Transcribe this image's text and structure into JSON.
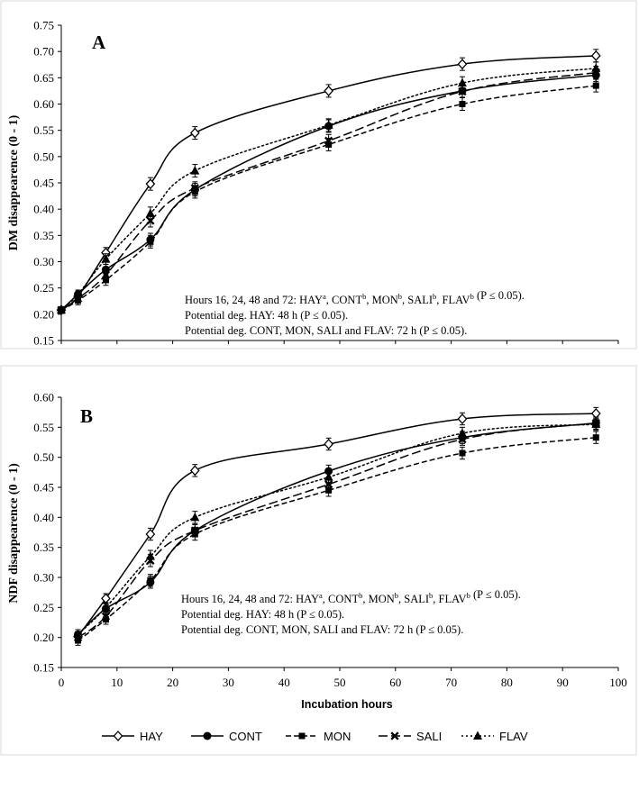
{
  "chart_data": [
    {
      "type": "line",
      "panel_label": "A",
      "ylabel": "DM disappearence  (0 - 1)",
      "xlabel": "",
      "xlim": [
        0,
        100
      ],
      "ylim": [
        0.15,
        0.75
      ],
      "x_ticks": [],
      "y_ticks": [
        "0.15",
        "0.20",
        "0.25",
        "0.30",
        "0.35",
        "0.40",
        "0.45",
        "0.50",
        "0.55",
        "0.60",
        "0.65",
        "0.70",
        "0.75"
      ],
      "x": [
        0,
        3,
        8,
        16,
        24,
        48,
        72,
        96
      ],
      "series": [
        {
          "name": "HAY",
          "values": [
            0.208,
            0.234,
            0.317,
            0.448,
            0.545,
            0.625,
            0.676,
            0.692
          ],
          "err": [
            0.005,
            0.008,
            0.01,
            0.012,
            0.012,
            0.012,
            0.012,
            0.012
          ]
        },
        {
          "name": "CONT",
          "values": [
            0.208,
            0.238,
            0.285,
            0.342,
            0.437,
            0.558,
            0.625,
            0.655
          ],
          "err": [
            0.005,
            0.008,
            0.01,
            0.012,
            0.012,
            0.012,
            0.012,
            0.012
          ]
        },
        {
          "name": "MON",
          "values": [
            0.208,
            0.226,
            0.265,
            0.338,
            0.433,
            0.523,
            0.6,
            0.635
          ],
          "err": [
            0.005,
            0.008,
            0.01,
            0.012,
            0.012,
            0.012,
            0.012,
            0.012
          ]
        },
        {
          "name": "SALI",
          "values": [
            0.208,
            0.23,
            0.275,
            0.378,
            0.44,
            0.53,
            0.624,
            0.66
          ],
          "err": [
            0.005,
            0.008,
            0.01,
            0.012,
            0.012,
            0.012,
            0.012,
            0.012
          ]
        },
        {
          "name": "FLAV",
          "values": [
            0.208,
            0.238,
            0.305,
            0.392,
            0.473,
            0.56,
            0.64,
            0.668
          ],
          "err": [
            0.005,
            0.008,
            0.01,
            0.012,
            0.012,
            0.012,
            0.012,
            0.012
          ]
        }
      ],
      "annotations": {
        "line1": {
          "pre": "Hours 16, 24, 48 and 72: ",
          "items": [
            {
              "text": "HAY",
              "sup": "a"
            },
            {
              "text": "CONT",
              "sup": "b"
            },
            {
              "text": "MON",
              "sup": "b"
            },
            {
              "text": "SALI",
              "sup": "b"
            },
            {
              "text": "FLAV",
              "sup": "b"
            }
          ],
          "post": " (P ≤ 0.05)."
        },
        "line2": "Potential deg. HAY: 48 h (P ≤ 0.05).",
        "line3": "Potential deg. CONT, MON, SALI and FLAV: 72 h (P ≤ 0.05)."
      }
    },
    {
      "type": "line",
      "panel_label": "B",
      "ylabel": "NDF disappearence  (0 - 1)",
      "xlabel": "Incubation hours",
      "xlim": [
        0,
        100
      ],
      "ylim": [
        0.15,
        0.6
      ],
      "x_ticks": [
        "0",
        "10",
        "20",
        "30",
        "40",
        "50",
        "60",
        "70",
        "80",
        "90",
        "100"
      ],
      "y_ticks": [
        "0.15",
        "0.20",
        "0.25",
        "0.30",
        "0.35",
        "0.40",
        "0.45",
        "0.50",
        "0.55",
        "0.60"
      ],
      "x": [
        3,
        8,
        16,
        24,
        48,
        72,
        96
      ],
      "series": [
        {
          "name": "HAY",
          "values": [
            0.202,
            0.265,
            0.372,
            0.478,
            0.522,
            0.564,
            0.573
          ],
          "err": [
            0.008,
            0.008,
            0.01,
            0.01,
            0.01,
            0.01,
            0.01
          ]
        },
        {
          "name": "CONT",
          "values": [
            0.205,
            0.248,
            0.292,
            0.378,
            0.477,
            0.533,
            0.557
          ],
          "err": [
            0.008,
            0.008,
            0.01,
            0.01,
            0.01,
            0.01,
            0.01
          ]
        },
        {
          "name": "MON",
          "values": [
            0.195,
            0.23,
            0.295,
            0.372,
            0.445,
            0.507,
            0.533
          ],
          "err": [
            0.008,
            0.008,
            0.01,
            0.01,
            0.01,
            0.01,
            0.01
          ]
        },
        {
          "name": "SALI",
          "values": [
            0.2,
            0.235,
            0.328,
            0.378,
            0.455,
            0.53,
            0.557
          ],
          "err": [
            0.008,
            0.008,
            0.01,
            0.01,
            0.01,
            0.01,
            0.01
          ]
        },
        {
          "name": "FLAV",
          "values": [
            0.205,
            0.25,
            0.335,
            0.4,
            0.467,
            0.54,
            0.555
          ],
          "err": [
            0.008,
            0.008,
            0.01,
            0.01,
            0.01,
            0.01,
            0.01
          ]
        }
      ],
      "annotations": {
        "line1": {
          "pre": "Hours 16, 24, 48 and 72: ",
          "items": [
            {
              "text": "HAY",
              "sup": "a"
            },
            {
              "text": "CONT",
              "sup": "b"
            },
            {
              "text": "MON",
              "sup": "b"
            },
            {
              "text": "SALI",
              "sup": "b"
            },
            {
              "text": "FLAV",
              "sup": "b"
            }
          ],
          "post": " (P ≤ 0.05)."
        },
        "line2": "Potential deg. HAY: 48 h (P ≤ 0.05).",
        "line3": "Potential deg. CONT, MON, SALI and FLAV: 72 h (P ≤ 0.05)."
      }
    }
  ],
  "legend": [
    {
      "name": "HAY",
      "dash": "solid",
      "marker": "diamond-open"
    },
    {
      "name": "CONT",
      "dash": "solid",
      "marker": "circle"
    },
    {
      "name": "MON",
      "dash": "dashed",
      "marker": "square"
    },
    {
      "name": "SALI",
      "dash": "longdash",
      "marker": "x"
    },
    {
      "name": "FLAV",
      "dash": "dotted",
      "marker": "triangle"
    }
  ],
  "colors": {
    "line": "#000000",
    "frame": "#d9d9d9",
    "background": "#ffffff"
  }
}
